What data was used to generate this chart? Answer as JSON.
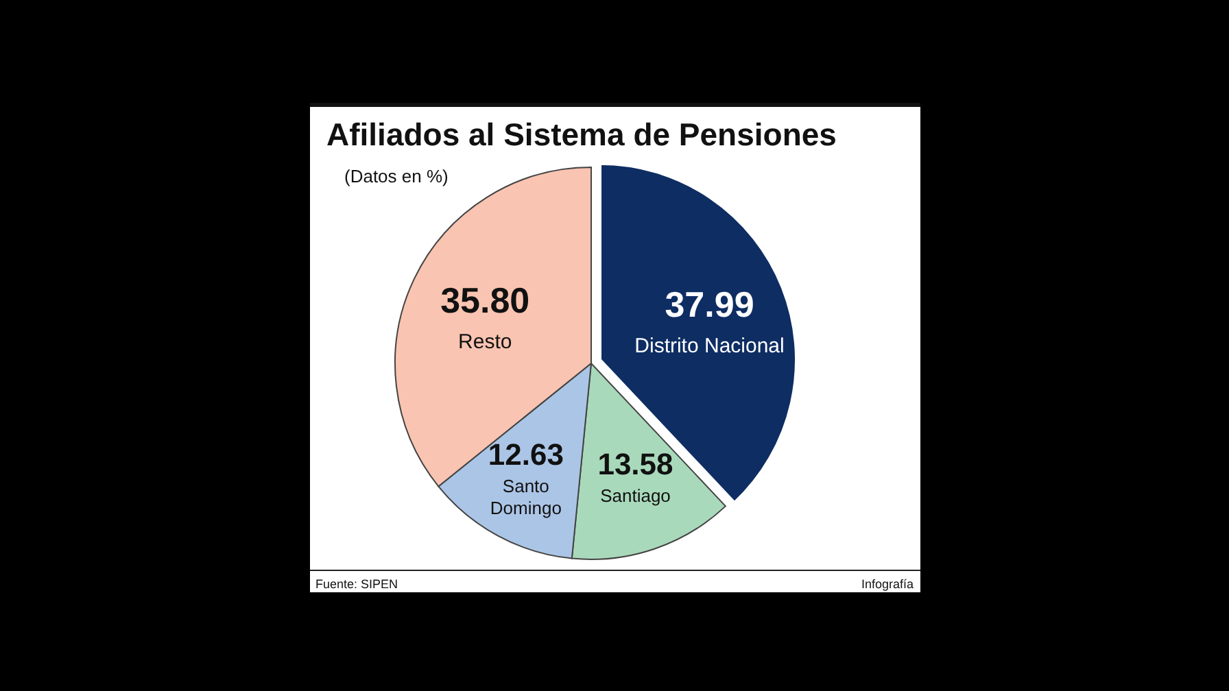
{
  "chart_data": {
    "type": "pie",
    "title": "Afiliados al Sistema de Pensiones",
    "subtitle": "(Datos en %)",
    "categories": [
      "Distrito Nacional",
      "Santiago",
      "Santo Domingo",
      "Resto"
    ],
    "values": [
      37.99,
      13.58,
      12.63,
      35.8
    ],
    "colors": [
      "#0e2d63",
      "#a9d9bb",
      "#abc5e6",
      "#f9c4b1"
    ],
    "value_labels": [
      "37.99",
      "13.58",
      "12.63",
      "35.80"
    ],
    "annotations": [
      "Fuente: SIPEN",
      "Infografía"
    ]
  }
}
